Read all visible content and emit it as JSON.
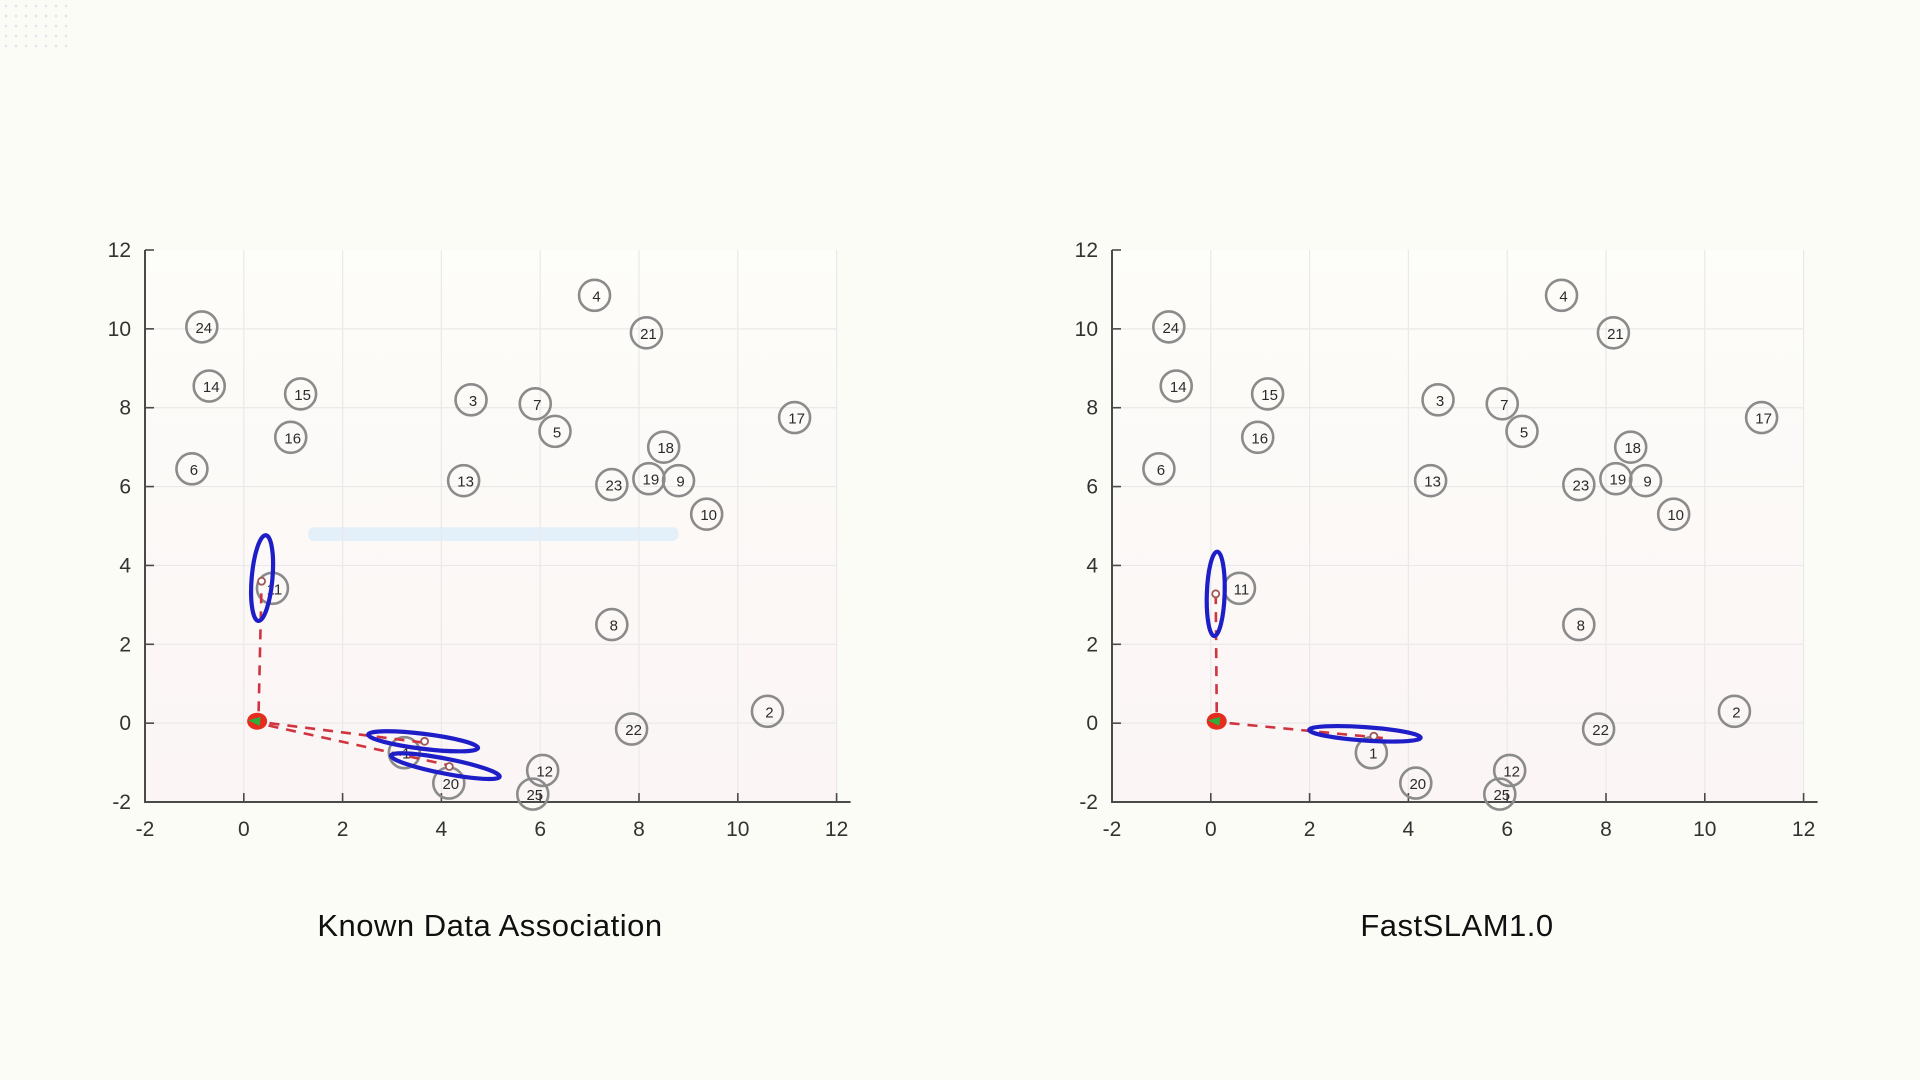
{
  "figure": {
    "background": "#fcfcf7",
    "axis_color": "#4a4a4a",
    "tick_label_color": "#333333",
    "grid_color": "#e9e9e9",
    "landmark_stroke": "#8b8b8b",
    "landmark_text_color": "#2b2b2b",
    "ellipse_color": "#1e1ec8",
    "ray_color": "#cf3440",
    "robot_body_color": "#e52c1e",
    "robot_heading_color": "#2fae3a",
    "estimate_marker_stroke": "#a05858"
  },
  "chart_data": {
    "type": "scatter",
    "description": "Side-by-side SLAM comparison: ground-truth numbered landmarks (gray circles), robot pose at origin (red marker), red dashed measurement rays, blue landmark-uncertainty ellipses.",
    "xlim": [
      -2,
      12
    ],
    "ylim": [
      -2,
      12
    ],
    "x_ticks": [
      -2,
      0,
      2,
      4,
      6,
      8,
      10,
      12
    ],
    "y_ticks": [
      12,
      10,
      8,
      6,
      4,
      2,
      0,
      -2
    ],
    "grid": true,
    "landmarks": [
      {
        "id": "1",
        "x": 3.25,
        "y": -0.75
      },
      {
        "id": "2",
        "x": 10.6,
        "y": 0.3
      },
      {
        "id": "3",
        "x": 4.6,
        "y": 8.2
      },
      {
        "id": "4",
        "x": 7.1,
        "y": 10.85
      },
      {
        "id": "5",
        "x": 6.3,
        "y": 7.4
      },
      {
        "id": "6",
        "x": -1.05,
        "y": 6.45
      },
      {
        "id": "7",
        "x": 5.9,
        "y": 8.1
      },
      {
        "id": "8",
        "x": 7.45,
        "y": 2.5
      },
      {
        "id": "9",
        "x": 8.8,
        "y": 6.15
      },
      {
        "id": "10",
        "x": 9.37,
        "y": 5.3
      },
      {
        "id": "11",
        "x": 0.58,
        "y": 3.42
      },
      {
        "id": "12",
        "x": 6.05,
        "y": -1.2
      },
      {
        "id": "13",
        "x": 4.45,
        "y": 6.15
      },
      {
        "id": "14",
        "x": -0.7,
        "y": 8.55
      },
      {
        "id": "15",
        "x": 1.15,
        "y": 8.35
      },
      {
        "id": "16",
        "x": 0.95,
        "y": 7.25
      },
      {
        "id": "17",
        "x": 11.15,
        "y": 7.75
      },
      {
        "id": "18",
        "x": 8.5,
        "y": 7.0
      },
      {
        "id": "19",
        "x": 8.2,
        "y": 6.2
      },
      {
        "id": "20",
        "x": 4.15,
        "y": -1.52
      },
      {
        "id": "21",
        "x": 8.15,
        "y": 9.9
      },
      {
        "id": "22",
        "x": 7.85,
        "y": -0.15
      },
      {
        "id": "23",
        "x": 7.45,
        "y": 6.05
      },
      {
        "id": "24",
        "x": -0.85,
        "y": 10.05
      },
      {
        "id": "25",
        "x": 5.85,
        "y": -1.8
      }
    ],
    "plots": [
      {
        "title": "Known Data Association",
        "robot": {
          "x": 0.27,
          "y": 0.05,
          "heading_deg": 185
        },
        "ellipses": [
          {
            "cx": 0.37,
            "cy": 3.68,
            "rx": 0.21,
            "ry": 1.09,
            "rot_deg": 5
          },
          {
            "cx": 3.63,
            "cy": -0.46,
            "rx": 1.12,
            "ry": 0.19,
            "rot_deg": 7
          },
          {
            "cx": 4.08,
            "cy": -1.09,
            "rx": 1.12,
            "ry": 0.19,
            "rot_deg": 11
          }
        ],
        "estimates": [
          {
            "x": 0.36,
            "y": 3.6
          },
          {
            "x": 3.66,
            "y": -0.46
          },
          {
            "x": 4.16,
            "y": -1.1
          }
        ],
        "rays": [
          {
            "x1": 0.3,
            "y1": 0.3,
            "x2": 0.36,
            "y2": 3.55
          },
          {
            "x1": 0.52,
            "y1": 0.0,
            "x2": 3.68,
            "y2": -0.5
          },
          {
            "x1": 0.5,
            "y1": -0.06,
            "x2": 4.2,
            "y2": -1.08
          }
        ],
        "tint_patch": {
          "x": 1.3,
          "y": 4.62,
          "w": 7.5,
          "h": 0.35,
          "color": "rgba(200,228,250,0.45)"
        }
      },
      {
        "title": "FastSLAM1.0",
        "robot": {
          "x": 0.12,
          "y": 0.05,
          "heading_deg": 185
        },
        "ellipses": [
          {
            "cx": 0.1,
            "cy": 3.28,
            "rx": 0.18,
            "ry": 1.07,
            "rot_deg": 2
          },
          {
            "cx": 3.12,
            "cy": -0.27,
            "rx": 1.13,
            "ry": 0.17,
            "rot_deg": 4
          }
        ],
        "estimates": [
          {
            "x": 0.1,
            "y": 3.28
          },
          {
            "x": 3.3,
            "y": -0.33
          }
        ],
        "rays": [
          {
            "x1": 0.12,
            "y1": 0.28,
            "x2": 0.1,
            "y2": 3.2
          },
          {
            "x1": 0.38,
            "y1": 0.0,
            "x2": 3.5,
            "y2": -0.38
          }
        ],
        "tint_patch": null
      }
    ]
  }
}
